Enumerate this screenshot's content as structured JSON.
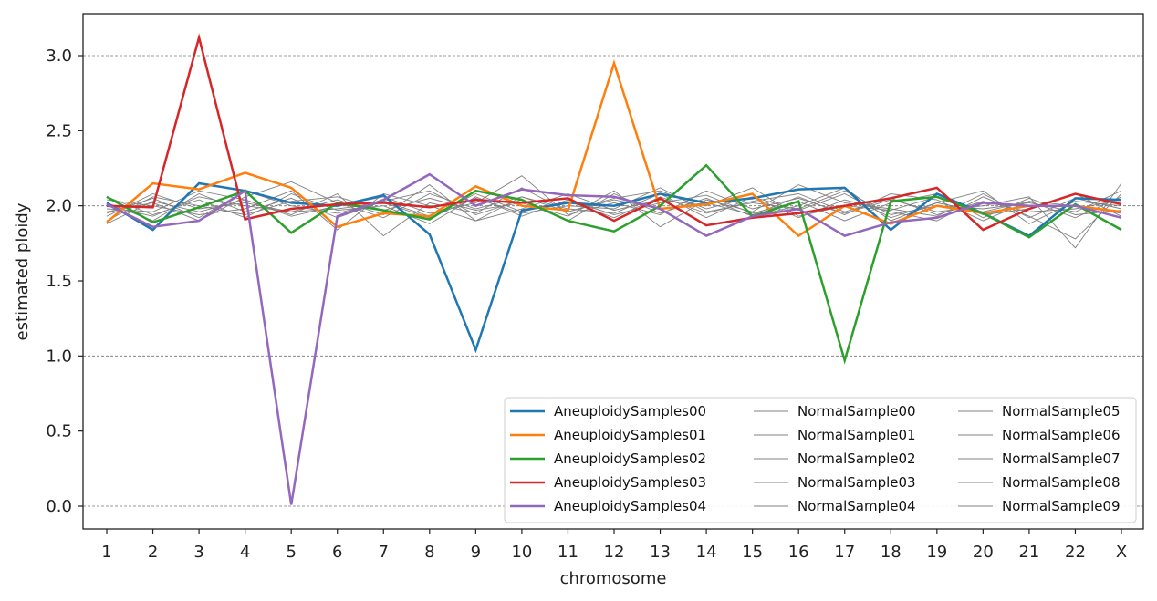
{
  "chart_data": {
    "type": "line",
    "xlabel": "chromosome",
    "ylabel": "estimated ploidy",
    "categories": [
      "1",
      "2",
      "3",
      "4",
      "5",
      "6",
      "7",
      "8",
      "9",
      "10",
      "11",
      "12",
      "13",
      "14",
      "15",
      "16",
      "17",
      "18",
      "19",
      "20",
      "21",
      "22",
      "X"
    ],
    "ylim": [
      -0.15,
      3.28
    ],
    "yticks": [
      0.0,
      0.5,
      1.0,
      1.5,
      2.0,
      2.5,
      3.0
    ],
    "ytick_labels": [
      "0.0",
      "0.5",
      "1.0",
      "1.5",
      "2.0",
      "2.5",
      "3.0"
    ],
    "grid": "horizontal dashed at 0.0, 1.0, 2.0, 3.0",
    "legend_placement": "bottom-right",
    "series": [
      {
        "name": "AneuploidySamples00",
        "color": "#1f77b4",
        "width": 2.5,
        "values": [
          2.02,
          1.84,
          2.15,
          2.1,
          2.02,
          2.0,
          2.07,
          1.81,
          1.04,
          1.97,
          2.02,
          2.0,
          2.08,
          2.02,
          2.05,
          2.11,
          2.12,
          1.84,
          2.08,
          1.95,
          1.8,
          2.05,
          2.04
        ]
      },
      {
        "name": "AneuploidySamples01",
        "color": "#ff7f0e",
        "width": 2.5,
        "values": [
          1.89,
          2.15,
          2.11,
          2.22,
          2.12,
          1.86,
          1.95,
          1.93,
          2.13,
          2.0,
          1.97,
          2.95,
          1.98,
          2.01,
          2.08,
          1.8,
          2.0,
          1.88,
          2.0,
          1.95,
          2.0,
          2.0,
          1.96
        ]
      },
      {
        "name": "AneuploidySamples02",
        "color": "#2ca02c",
        "width": 2.5,
        "values": [
          2.06,
          1.89,
          1.99,
          2.1,
          1.82,
          2.02,
          1.97,
          1.91,
          2.1,
          2.04,
          1.9,
          1.83,
          2.0,
          2.27,
          1.93,
          2.03,
          0.97,
          2.03,
          2.06,
          1.95,
          1.79,
          2.01,
          1.84
        ]
      },
      {
        "name": "AneuploidySamples03",
        "color": "#d62728",
        "width": 2.5,
        "values": [
          2.0,
          1.99,
          3.12,
          1.91,
          1.98,
          2.01,
          2.02,
          1.99,
          2.04,
          2.02,
          2.05,
          1.9,
          2.05,
          1.87,
          1.92,
          1.95,
          2.0,
          2.05,
          2.12,
          1.84,
          1.98,
          2.08,
          2.01
        ]
      },
      {
        "name": "AneuploidySamples04",
        "color": "#9467bd",
        "width": 2.5,
        "values": [
          2.01,
          1.86,
          1.9,
          2.1,
          0.01,
          1.93,
          2.04,
          2.21,
          2.0,
          2.11,
          2.07,
          2.06,
          1.98,
          1.8,
          1.93,
          1.98,
          1.8,
          1.89,
          1.92,
          2.02,
          2.0,
          2.0,
          1.92
        ]
      },
      {
        "name": "NormalSample00",
        "color": "#808080",
        "width": 0.9,
        "values": [
          1.95,
          2.05,
          1.92,
          2.1,
          2.0,
          1.95,
          2.03,
          1.93,
          2.08,
          1.96,
          2.03,
          1.92,
          2.06,
          1.95,
          2.03,
          2.08,
          1.96,
          2.05,
          1.94,
          2.03,
          1.96,
          1.98,
          2.04
        ]
      },
      {
        "name": "NormalSample01",
        "color": "#808080",
        "width": 0.9,
        "values": [
          2.02,
          1.9,
          2.08,
          1.96,
          2.05,
          1.92,
          2.03,
          2.1,
          1.94,
          2.04,
          1.9,
          2.08,
          1.95,
          2.05,
          1.93,
          2.0,
          2.12,
          1.9,
          2.02,
          2.1,
          1.88,
          2.03,
          2.0
        ]
      },
      {
        "name": "NormalSample02",
        "color": "#808080",
        "width": 0.9,
        "values": [
          1.88,
          2.03,
          1.96,
          2.04,
          1.94,
          2.08,
          1.8,
          2.02,
          1.95,
          2.12,
          1.96,
          2.05,
          2.1,
          1.98,
          2.06,
          1.92,
          2.04,
          1.96,
          1.9,
          2.06,
          1.93,
          1.78,
          2.08
        ]
      },
      {
        "name": "NormalSample03",
        "color": "#808080",
        "width": 0.9,
        "values": [
          2.06,
          1.94,
          2.04,
          1.92,
          2.08,
          1.97,
          2.0,
          1.88,
          2.06,
          1.93,
          2.04,
          1.94,
          2.02,
          2.07,
          1.95,
          2.03,
          1.9,
          2.02,
          2.08,
          1.92,
          2.05,
          1.94,
          1.97
        ]
      },
      {
        "name": "NormalSample04",
        "color": "#808080",
        "width": 0.9,
        "values": [
          1.93,
          2.08,
          1.98,
          2.02,
          1.96,
          2.04,
          1.94,
          2.14,
          1.9,
          2.06,
          1.98,
          1.95,
          2.08,
          1.92,
          2.06,
          1.97,
          2.08,
          1.92,
          2.02,
          1.96,
          2.03,
          2.0,
          1.95
        ]
      },
      {
        "name": "NormalSample05",
        "color": "#808080",
        "width": 0.9,
        "values": [
          1.98,
          1.96,
          2.1,
          2.04,
          1.93,
          2.0,
          2.06,
          1.95,
          2.02,
          2.2,
          1.94,
          2.02,
          1.94,
          2.1,
          1.98,
          2.05,
          1.95,
          2.04,
          1.96,
          2.0,
          2.06,
          1.72,
          2.15
        ]
      },
      {
        "name": "NormalSample06",
        "color": "#808080",
        "width": 0.9,
        "values": [
          2.04,
          2.0,
          1.94,
          1.98,
          2.1,
          1.84,
          2.08,
          2.0,
          1.9,
          1.98,
          2.08,
          1.97,
          2.04,
          2.0,
          2.12,
          1.93,
          2.0,
          1.97,
          2.06,
          1.94,
          1.98,
          2.08,
          1.93
        ]
      },
      {
        "name": "NormalSample07",
        "color": "#808080",
        "width": 0.9,
        "values": [
          1.9,
          2.06,
          2.0,
          1.94,
          2.03,
          2.06,
          1.97,
          2.05,
          1.97,
          2.02,
          1.93,
          2.1,
          1.86,
          2.04,
          1.96,
          2.14,
          2.02,
          1.98,
          1.93,
          2.08,
          1.92,
          2.05,
          1.98
        ]
      },
      {
        "name": "NormalSample08",
        "color": "#808080",
        "width": 0.9,
        "values": [
          2.0,
          1.93,
          2.06,
          2.0,
          1.96,
          1.98,
          2.02,
          1.92,
          2.05,
          1.95,
          2.0,
          1.98,
          2.12,
          1.96,
          2.02,
          1.98,
          2.1,
          1.94,
          2.0,
          1.98,
          2.02,
          1.96,
          2.1
        ]
      },
      {
        "name": "NormalSample09",
        "color": "#808080",
        "width": 0.9,
        "values": [
          1.96,
          2.02,
          1.9,
          2.06,
          2.16,
          2.02,
          1.92,
          2.08,
          1.98,
          2.06,
          1.96,
          2.04,
          1.98,
          2.02,
          1.94,
          2.06,
          1.94,
          2.08,
          2.04,
          1.9,
          2.03,
          1.92,
          2.06
        ]
      }
    ]
  }
}
